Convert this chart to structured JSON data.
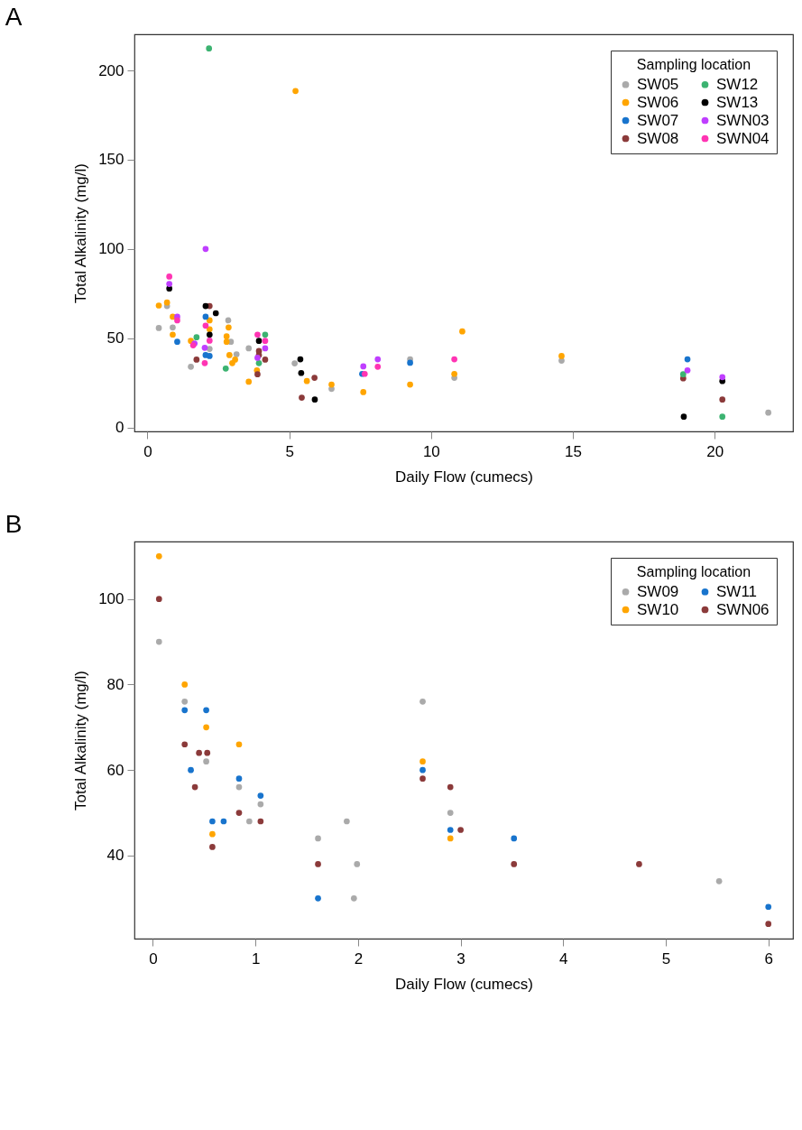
{
  "chart_data": [
    {
      "type": "scatter",
      "title": "A",
      "xlabel": "Daily Flow (cumecs)",
      "ylabel": "Total Alkalinity (mg/l)",
      "legend_title": "Sampling location",
      "legend": "top right",
      "grid": false,
      "marker": "circle",
      "xlim": [
        -0.46,
        22.76
      ],
      "ylim": [
        -2.24,
        220.24
      ],
      "xticks": [
        0,
        5,
        10,
        15,
        20
      ],
      "yticks": [
        0,
        50,
        100,
        150,
        200
      ],
      "series": [
        {
          "name": "SW05",
          "color": "#aaaaaa",
          "x": [
            0.69,
            0.4,
            0.89,
            1.53,
            2.19,
            2.85,
            2.94,
            3.14,
            3.57,
            5.19,
            6.49,
            9.26,
            10.82,
            14.6,
            21.89
          ],
          "values": [
            68,
            55.7,
            56,
            34,
            44,
            60,
            48,
            41,
            44.3,
            35.9,
            21.6,
            38.2,
            27.8,
            37.4,
            8.3
          ]
        },
        {
          "name": "SW06",
          "color": "#ffa500",
          "x": [
            0.4,
            0.69,
            0.89,
            0.89,
            1.53,
            2.19,
            2.19,
            2.86,
            2.79,
            2.79,
            2.89,
            3.09,
            2.99,
            3.57,
            3.86,
            5.22,
            5.62,
            6.49,
            7.61,
            9.26,
            10.82,
            11.1,
            14.6
          ],
          "values": [
            68.3,
            70,
            62,
            52,
            48.5,
            60,
            55,
            56,
            51,
            48,
            40.5,
            38,
            36,
            25.6,
            32,
            188.5,
            26,
            24,
            19.8,
            24,
            30,
            53.8,
            40
          ]
        },
        {
          "name": "SW07",
          "color": "#1874cd",
          "x": [
            1.05,
            2.05,
            2.05,
            2.19,
            7.57,
            9.26,
            19.04
          ],
          "values": [
            48,
            62,
            40.5,
            40,
            30,
            36.2,
            38.2
          ]
        },
        {
          "name": "SW08",
          "color": "#8b3a3a",
          "x": [
            1.73,
            2.19,
            3.93,
            3.93,
            4.15,
            3.88,
            5.89,
            5.44,
            18.89,
            20.27
          ],
          "values": [
            38,
            68,
            42.8,
            40.5,
            38,
            29.8,
            27.8,
            16.7,
            27.5,
            15.6
          ]
        },
        {
          "name": "SW12",
          "color": "#3cb371",
          "x": [
            2.17,
            1.73,
            2.76,
            4.15,
            3.93,
            18.89,
            20.27
          ],
          "values": [
            212.3,
            50.5,
            33,
            52,
            36,
            29.8,
            6
          ]
        },
        {
          "name": "SW13",
          "color": "#000000",
          "x": [
            0.77,
            2.05,
            2.41,
            2.19,
            3.93,
            5.39,
            5.42,
            5.9,
            18.91,
            20.27
          ],
          "values": [
            77.8,
            68,
            64,
            52,
            48.5,
            38.2,
            30.5,
            15.6,
            6,
            26
          ]
        },
        {
          "name": "SWN03",
          "color": "#bf3eff",
          "x": [
            0.77,
            1.05,
            1.66,
            2.05,
            2.02,
            4.15,
            3.88,
            7.61,
            8.12,
            19.04,
            20.27
          ],
          "values": [
            80.4,
            62,
            47,
            100,
            44.6,
            44.3,
            39,
            34.2,
            38.2,
            32,
            28.2
          ]
        },
        {
          "name": "SWN04",
          "color": "#ff34b3",
          "x": [
            0.77,
            1.05,
            1.61,
            2.05,
            2.19,
            2.02,
            3.88,
            4.15,
            7.66,
            8.12,
            10.82
          ],
          "values": [
            84.5,
            60,
            46,
            57,
            48.6,
            36,
            52,
            48.5,
            30,
            34,
            38.2
          ]
        }
      ]
    },
    {
      "type": "scatter",
      "title": "B",
      "xlabel": "Daily Flow (cumecs)",
      "ylabel": "Total Alkalinity (mg/l)",
      "legend_title": "Sampling location",
      "legend": "top right",
      "grid": false,
      "marker": "circle",
      "xlim": [
        -0.18,
        6.24
      ],
      "ylim": [
        20.56,
        113.44
      ],
      "xticks": [
        0,
        1,
        2,
        3,
        4,
        5,
        6
      ],
      "yticks": [
        40,
        60,
        80,
        100
      ],
      "series": [
        {
          "name": "SW09",
          "color": "#aaaaaa",
          "x": [
            0.06,
            0.31,
            0.52,
            0.84,
            1.05,
            0.94,
            1.61,
            1.89,
            1.99,
            1.96,
            2.63,
            2.9,
            5.52
          ],
          "values": [
            90,
            76,
            62,
            56,
            52,
            48,
            44,
            48,
            38,
            30,
            76,
            50,
            34
          ]
        },
        {
          "name": "SW10",
          "color": "#ffa500",
          "x": [
            0.06,
            0.31,
            0.52,
            0.84,
            0.58,
            2.63,
            2.9
          ],
          "values": [
            110,
            80,
            70,
            66,
            45,
            62,
            44
          ]
        },
        {
          "name": "SW11",
          "color": "#1874cd",
          "x": [
            0.31,
            0.52,
            0.37,
            0.84,
            1.05,
            0.58,
            0.69,
            1.61,
            2.63,
            2.9,
            3.52,
            6.0
          ],
          "values": [
            74,
            74,
            60,
            58,
            54,
            48,
            48,
            30,
            60,
            46,
            44,
            28
          ]
        },
        {
          "name": "SWN06",
          "color": "#8b3a3a",
          "x": [
            0.06,
            0.31,
            0.45,
            0.53,
            0.41,
            0.84,
            1.05,
            0.58,
            1.61,
            2.63,
            2.9,
            3.0,
            3.52,
            4.74,
            6.0
          ],
          "values": [
            100,
            66,
            64,
            64,
            56,
            50,
            48,
            42,
            38,
            58,
            56,
            46,
            38,
            38,
            24
          ]
        }
      ]
    }
  ]
}
